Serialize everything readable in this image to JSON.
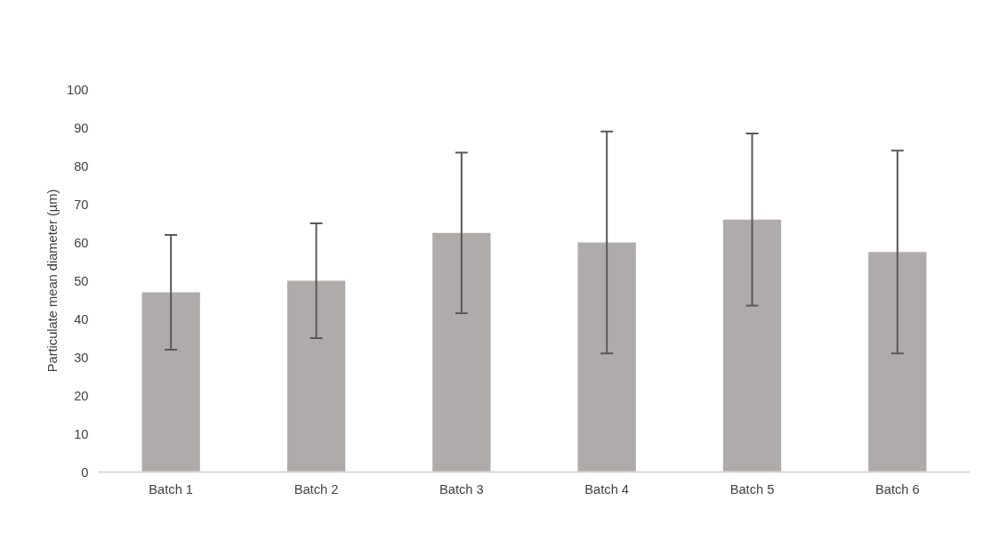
{
  "chart_data": {
    "type": "bar",
    "ylabel": "Particulate mean diameter (µm)",
    "categories": [
      "Batch 1",
      "Batch 2",
      "Batch 3",
      "Batch 4",
      "Batch 5",
      "Batch 6"
    ],
    "values": [
      47,
      50,
      62.5,
      60,
      66,
      57.5
    ],
    "errors": [
      15,
      15,
      21,
      29,
      22.5,
      26.5
    ],
    "color": "#afabaa",
    "ylim": [
      0,
      100
    ],
    "yticks": [
      0,
      10,
      20,
      30,
      40,
      50,
      60,
      70,
      80,
      90,
      100
    ],
    "grid": false
  }
}
